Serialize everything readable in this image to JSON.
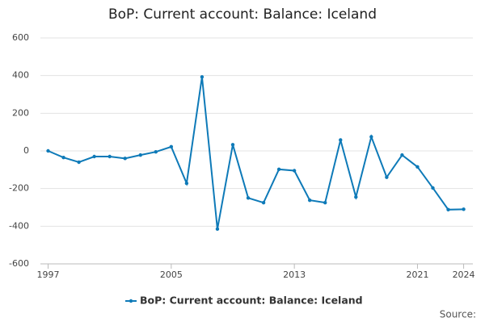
{
  "chart_data": {
    "type": "line",
    "title": "BoP: Current account: Balance: Iceland",
    "x": [
      1997,
      1998,
      1999,
      2000,
      2001,
      2002,
      2003,
      2004,
      2005,
      2006,
      2007,
      2008,
      2009,
      2010,
      2011,
      2012,
      2013,
      2014,
      2015,
      2016,
      2017,
      2018,
      2019,
      2020,
      2021,
      2022,
      2023,
      2024
    ],
    "series": [
      {
        "name": "BoP: Current account: Balance: Iceland",
        "color": "#0e7ab8",
        "values": [
          0,
          -35,
          -60,
          -30,
          -30,
          -40,
          -22,
          -5,
          22,
          -172,
          393,
          -415,
          33,
          -250,
          -275,
          -98,
          -105,
          -262,
          -275,
          58,
          -245,
          75,
          -140,
          -22,
          -85,
          -197,
          -312,
          -310
        ]
      }
    ],
    "xlim": [
      1996.5,
      2024.6
    ],
    "xticks": [
      1997,
      2005,
      2013,
      2021,
      2024
    ],
    "ylim": [
      -600,
      600
    ],
    "yticks": [
      -600,
      -400,
      -200,
      0,
      200,
      400,
      600
    ],
    "grid": true,
    "legend": "bottom",
    "source": "Source:"
  }
}
